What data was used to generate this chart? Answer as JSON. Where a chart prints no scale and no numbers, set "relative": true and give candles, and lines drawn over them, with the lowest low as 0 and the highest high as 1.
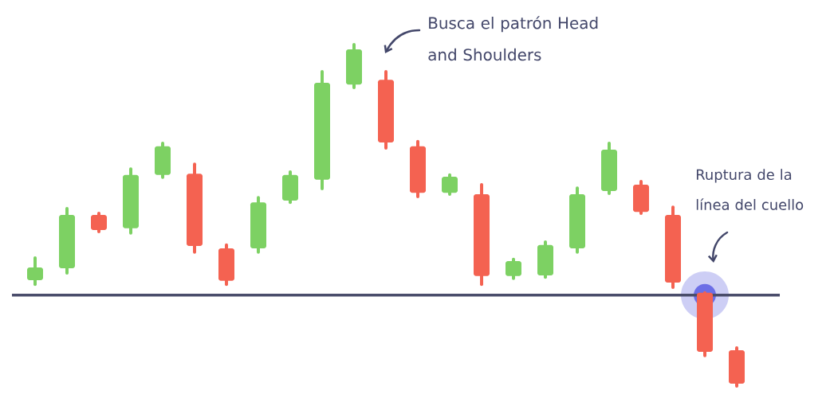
{
  "chart_data": {
    "type": "candlestick",
    "relative": true,
    "categories": [
      null,
      null,
      null,
      null,
      null,
      null,
      null,
      null,
      null,
      null,
      null,
      null,
      null,
      null,
      null,
      null,
      null,
      null,
      null,
      null,
      null,
      null,
      null
    ],
    "ohlc": [
      [
        0.31,
        0.375,
        0.298,
        0.347
      ],
      [
        0.345,
        0.52,
        0.331,
        0.501
      ],
      [
        0.501,
        0.506,
        0.452,
        0.457
      ],
      [
        0.462,
        0.636,
        0.448,
        0.618
      ],
      [
        0.618,
        0.711,
        0.611,
        0.702
      ],
      [
        0.622,
        0.65,
        0.392,
        0.41
      ],
      [
        0.403,
        0.413,
        0.298,
        0.308
      ],
      [
        0.403,
        0.552,
        0.392,
        0.538
      ],
      [
        0.543,
        0.627,
        0.538,
        0.618
      ],
      [
        0.604,
        0.921,
        0.578,
        0.888
      ],
      [
        0.883,
        1,
        0.874,
        0.986
      ],
      [
        0.897,
        0.921,
        0.697,
        0.713
      ],
      [
        0.702,
        0.716,
        0.555,
        0.566
      ],
      [
        0.566,
        0.618,
        0.562,
        0.613
      ],
      [
        0.562,
        0.59,
        0.298,
        0.322
      ],
      [
        0.322,
        0.371,
        0.315,
        0.366
      ],
      [
        0.324,
        0.422,
        0.319,
        0.413
      ],
      [
        0.403,
        0.58,
        0.392,
        0.562
      ],
      [
        0.571,
        0.711,
        0.564,
        0.692
      ],
      [
        0.59,
        0.599,
        0.506,
        0.51
      ],
      [
        0.501,
        0.524,
        0.289,
        0.303
      ],
      [
        0.273,
        0.273,
        0.089,
        0.1
      ],
      [
        0.105,
        0.112,
        0,
        0.007
      ]
    ],
    "colors": [
      "#7dd163",
      "#7dd163",
      "#f46251",
      "#7dd163",
      "#7dd163",
      "#f46251",
      "#f46251",
      "#7dd163",
      "#7dd163",
      "#7dd163",
      "#7dd163",
      "#f46251",
      "#f46251",
      "#7dd163",
      "#f46251",
      "#7dd163",
      "#7dd163",
      "#7dd163",
      "#7dd163",
      "#f46251",
      "#f46251",
      "#f46251",
      "#f46251"
    ],
    "ref_lines": [
      {
        "axis": "y",
        "value": 0.266,
        "color": "#4a4d6b"
      }
    ],
    "annotations": [
      "Busca el patrón Head and Shoulders",
      "Ruptura de la línea del cuello"
    ]
  }
}
